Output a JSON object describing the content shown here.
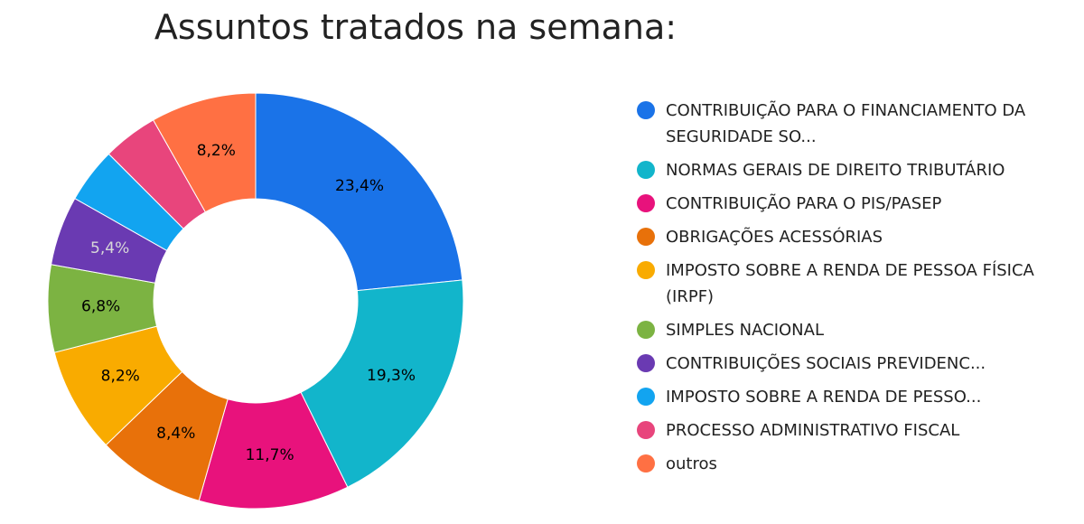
{
  "chart_data": {
    "type": "pie",
    "title": "Assuntos tratados na semana:",
    "slices": [
      {
        "label": "CONTRIBUIÇÃO PARA O FINANCIAMENTO DA SEGURIDADE SO...",
        "value": 23.4,
        "value_label": "23,4%",
        "color": "#1a73e8",
        "label_color": "#000000"
      },
      {
        "label": "NORMAS GERAIS DE DIREITO TRIBUTÁRIO",
        "value": 19.3,
        "value_label": "19,3%",
        "color": "#12b5cb",
        "label_color": "#000000"
      },
      {
        "label": "CONTRIBUIÇÃO PARA O PIS/PASEP",
        "value": 11.7,
        "value_label": "11,7%",
        "color": "#e8127c",
        "label_color": "#000000"
      },
      {
        "label": "OBRIGAÇÕES ACESSÓRIAS",
        "value": 8.4,
        "value_label": "8,4%",
        "color": "#e8710a",
        "label_color": "#000000"
      },
      {
        "label": "IMPOSTO SOBRE A RENDA DE PESSOA FÍSICA (IRPF)",
        "value": 8.2,
        "value_label": "8,2%",
        "color": "#f9ab00",
        "label_color": "#000000"
      },
      {
        "label": "SIMPLES NACIONAL",
        "value": 6.8,
        "value_label": "6,8%",
        "color": "#7cb342",
        "label_color": "#000000"
      },
      {
        "label": "CONTRIBUIÇÕES SOCIAIS PREVIDENC...",
        "value": 5.4,
        "value_label": "5,4%",
        "color": "#6a3ab2",
        "label_color": "#d8d8d8"
      },
      {
        "label": "IMPOSTO SOBRE A RENDA DE PESSO...",
        "value": 4.3,
        "value_label": "",
        "color": "#12a4f0",
        "label_color": "#000000"
      },
      {
        "label": "PROCESSO ADMINISTRATIVO FISCAL",
        "value": 4.3,
        "value_label": "",
        "color": "#e8457c",
        "label_color": "#000000"
      },
      {
        "label": "outros",
        "value": 8.2,
        "value_label": "8,2%",
        "color": "#ff7043",
        "label_color": "#000000"
      }
    ],
    "legend_placement": "right"
  },
  "legend": {
    "items": [
      {
        "label": "CONTRIBUIÇÃO PARA O FINANCIAMENTO DA SEGURIDADE SO...",
        "color": "#1a73e8"
      },
      {
        "label": "NORMAS GERAIS DE DIREITO TRIBUTÁRIO",
        "color": "#12b5cb"
      },
      {
        "label": "CONTRIBUIÇÃO PARA O PIS/PASEP",
        "color": "#e8127c"
      },
      {
        "label": "OBRIGAÇÕES ACESSÓRIAS",
        "color": "#e8710a"
      },
      {
        "label": "IMPOSTO SOBRE A RENDA DE PESSOA FÍSICA (IRPF)",
        "color": "#f9ab00"
      },
      {
        "label": "SIMPLES NACIONAL",
        "color": "#7cb342"
      },
      {
        "label": "CONTRIBUIÇÕES SOCIAIS PREVIDENC...",
        "color": "#6a3ab2"
      },
      {
        "label": "IMPOSTO SOBRE A RENDA DE PESSO...",
        "color": "#12a4f0"
      },
      {
        "label": "PROCESSO ADMINISTRATIVO FISCAL",
        "color": "#e8457c"
      },
      {
        "label": "outros",
        "color": "#ff7043"
      }
    ]
  }
}
